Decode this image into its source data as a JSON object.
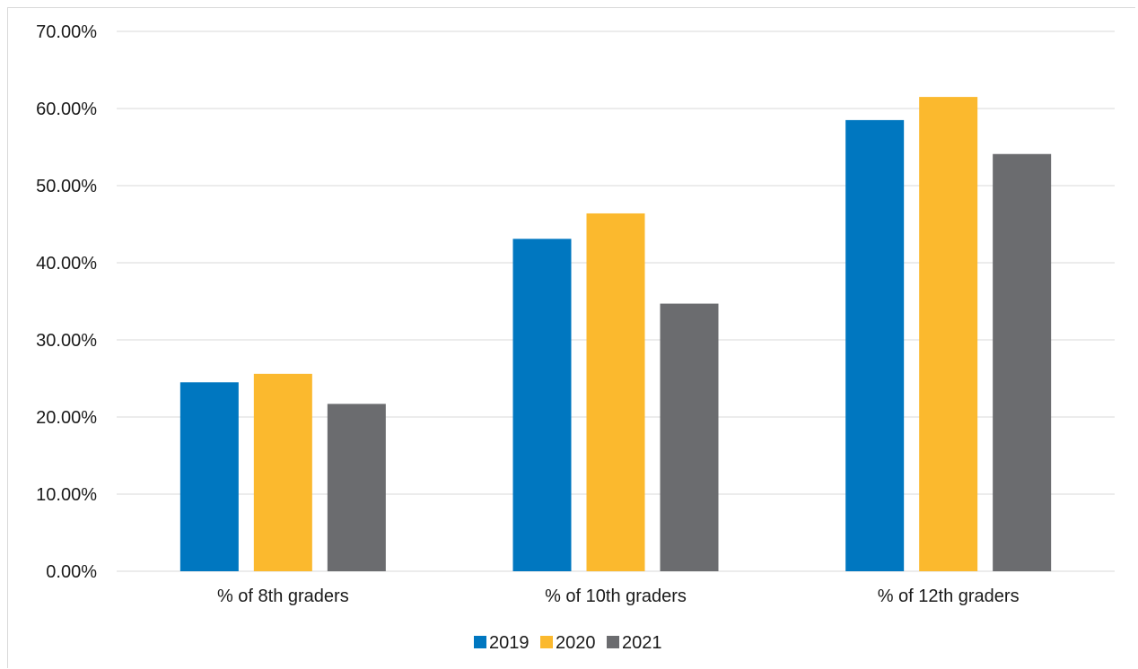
{
  "chart_data": {
    "type": "bar",
    "title": "",
    "xlabel": "",
    "ylabel": "",
    "categories": [
      "% of 8th graders",
      "% of 10th graders",
      "% of 12th graders"
    ],
    "series": [
      {
        "name": "2019",
        "color": "#0077c0",
        "values": [
          24.5,
          43.1,
          58.5
        ]
      },
      {
        "name": "2020",
        "color": "#fbb92e",
        "values": [
          25.6,
          46.4,
          61.5
        ]
      },
      {
        "name": "2021",
        "color": "#6b6c6f",
        "values": [
          21.7,
          34.7,
          54.1
        ]
      }
    ],
    "ylim": [
      0,
      70
    ],
    "yticks": [
      "0.00%",
      "10.00%",
      "20.00%",
      "30.00%",
      "40.00%",
      "50.00%",
      "60.00%",
      "70.00%"
    ],
    "grid": true,
    "legend_position": "bottom"
  }
}
